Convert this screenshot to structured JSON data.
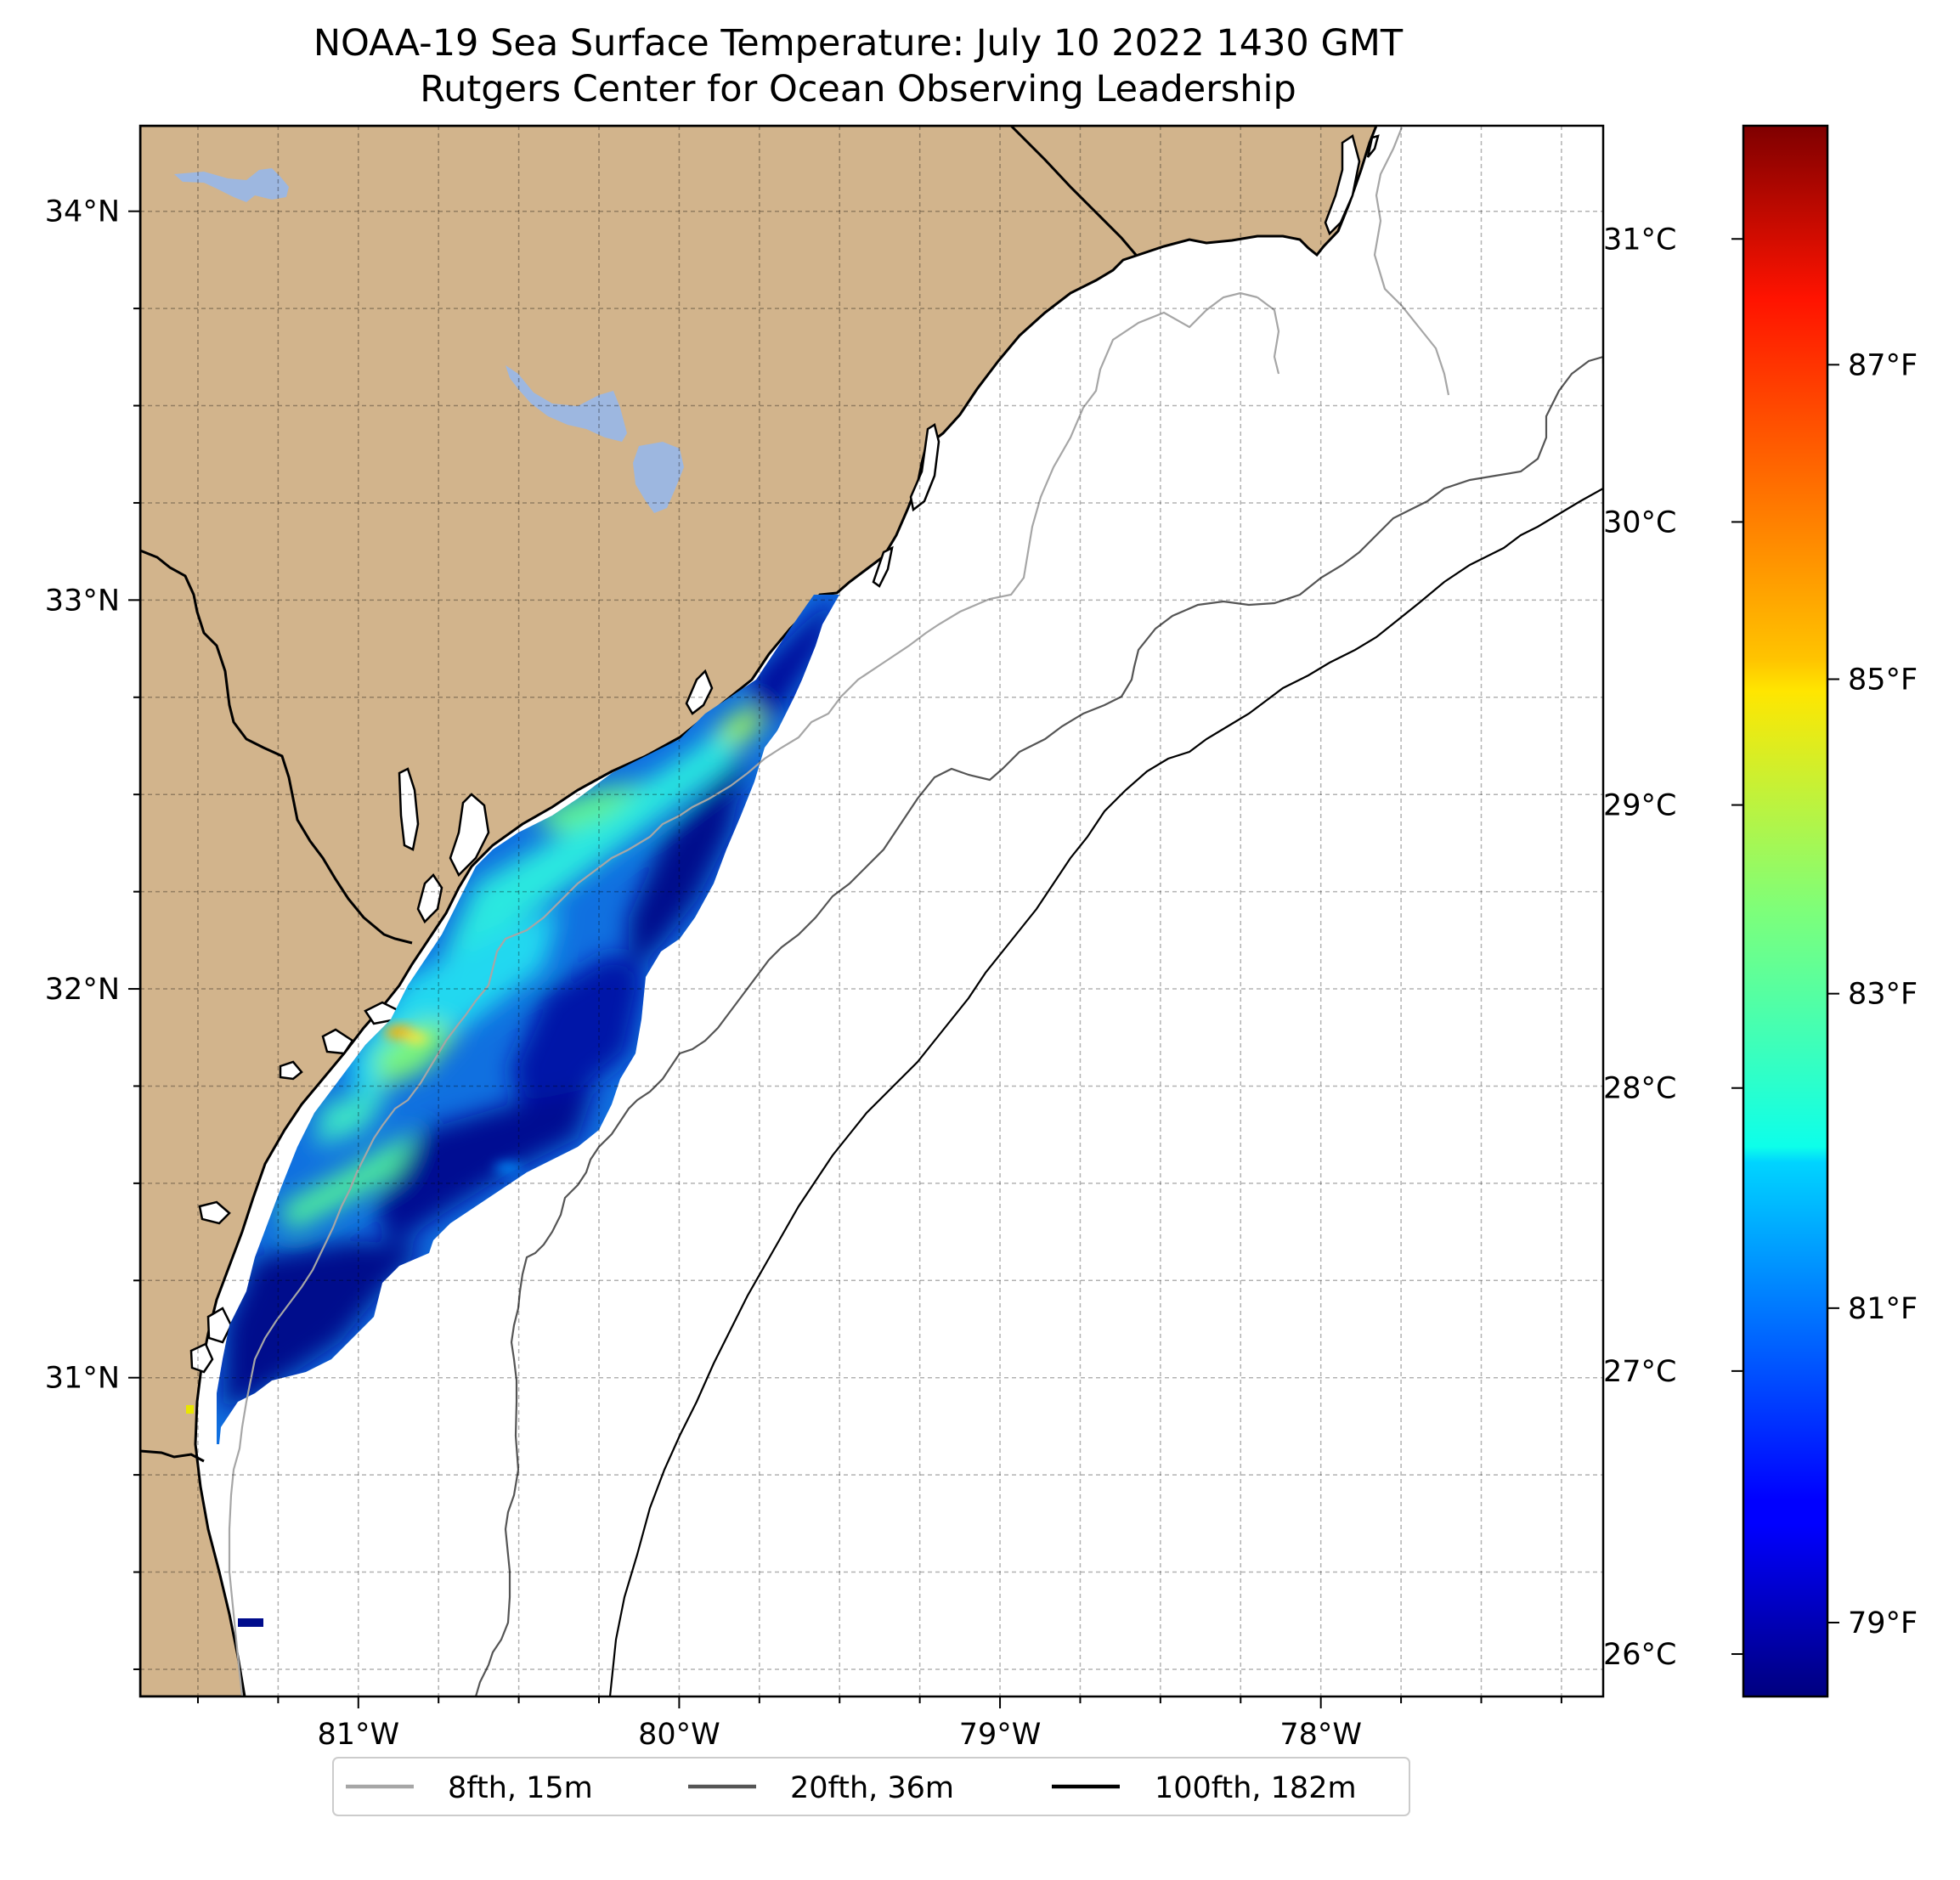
{
  "title": {
    "line1": "NOAA-19 Sea Surface Temperature: July 10 2022 1430 GMT",
    "line2": "Rutgers Center for Ocean Observing Leadership"
  },
  "map": {
    "lon_range": [
      -81.68,
      -77.12
    ],
    "lat_range": [
      30.18,
      34.22
    ],
    "lon_tick_labels": [
      "81°W",
      "80°W",
      "79°W",
      "78°W"
    ],
    "lat_tick_labels": [
      "31°N",
      "32°N",
      "33°N",
      "34°N"
    ],
    "gridlines": true,
    "land_color": "#D2B48C",
    "water_color": "#ffffff",
    "lake_color": "#9DB7E0"
  },
  "colorbar": {
    "colormap": "jet",
    "range_celsius": [
      25.85,
      31.4
    ],
    "celsius_labels": [
      "26°C",
      "27°C",
      "28°C",
      "29°C",
      "30°C",
      "31°C"
    ],
    "fahrenheit_labels": [
      "79°F",
      "81°F",
      "83°F",
      "85°F",
      "87°F"
    ]
  },
  "legend": {
    "items": [
      {
        "label": "8fth, 15m",
        "color": "#a6a6a6"
      },
      {
        "label": "20fth, 36m",
        "color": "#555555"
      },
      {
        "label": "100fth, 182m",
        "color": "#000000"
      }
    ]
  }
}
